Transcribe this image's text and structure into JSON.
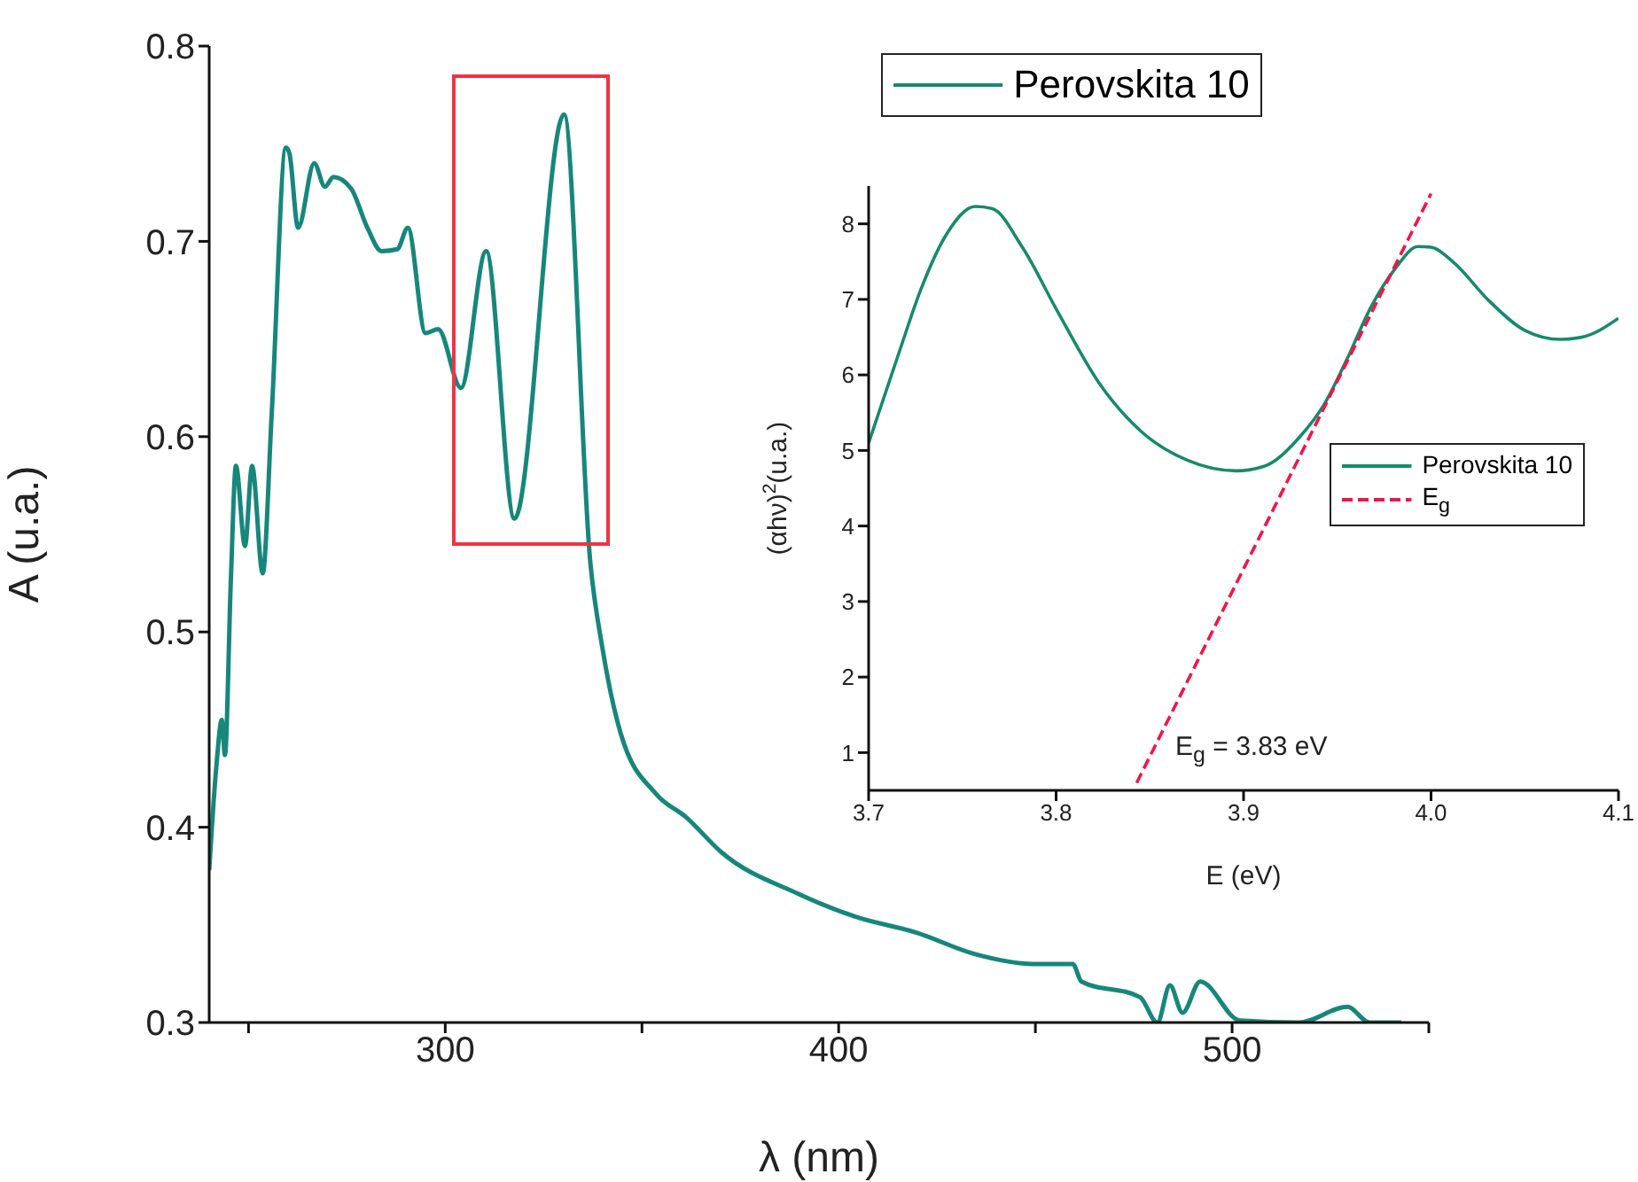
{
  "chart_data": [
    {
      "type": "line",
      "xlabel": "λ (nm)",
      "ylabel": "A (u.a.)",
      "xlim": [
        240,
        550
      ],
      "ylim": [
        0.3,
        0.8
      ],
      "xticks": [
        {
          "value": 250,
          "label": null
        },
        300,
        {
          "value": 350,
          "label": null
        },
        400,
        {
          "value": 450,
          "label": null
        },
        500,
        {
          "value": 550,
          "label": null
        }
      ],
      "yticks": [
        0.3,
        0.4,
        0.5,
        0.6,
        0.7,
        0.8
      ],
      "legend": "top right",
      "marker": "none",
      "series": [
        {
          "name": "Perovskita 10",
          "color": "#16877a",
          "line_style": "solid",
          "x": [
            240,
            241.9,
            243.2,
            244,
            245.5,
            246.8,
            249.1,
            250.9,
            253.6,
            255.9,
            259.5,
            260.4,
            262.6,
            266.7,
            269.4,
            271.6,
            276.1,
            280.2,
            283.8,
            287.8,
            290.5,
            295,
            298.2,
            304,
            310.4,
            317.6,
            330.2,
            336.9,
            340.1,
            344.6,
            353.6,
            361.3,
            370.3,
            389.6,
            404.5,
            419.8,
            434.7,
            449.5,
            459.5,
            461.7,
            476.6,
            481,
            484.2,
            487.4,
            491.9,
            502,
            517,
            529.3,
            535,
            543
          ],
          "values": [
            0.378,
            0.433,
            0.455,
            0.437,
            0.526,
            0.585,
            0.544,
            0.585,
            0.53,
            0.612,
            0.748,
            0.745,
            0.707,
            0.74,
            0.728,
            0.733,
            0.727,
            0.707,
            0.695,
            0.696,
            0.707,
            0.653,
            0.655,
            0.625,
            0.695,
            0.558,
            0.765,
            0.535,
            0.49,
            0.448,
            0.417,
            0.405,
            0.387,
            0.366,
            0.354,
            0.346,
            0.335,
            0.33,
            0.33,
            0.321,
            0.313,
            0.3,
            0.319,
            0.305,
            0.321,
            0.301,
            0.3,
            0.308,
            0.3,
            0.3
          ]
        }
      ]
    },
    {
      "type": "line",
      "xlabel": "E (eV)",
      "ylabel": "(αhν)$^{2}$(u.a.)",
      "xlim": [
        3.7,
        4.1
      ],
      "ylim": [
        0.5,
        8.5
      ],
      "xticks": [
        3.7,
        3.8,
        3.9,
        {
          "value": 4,
          "label": "4.0"
        },
        4.1
      ],
      "yticks": [
        1,
        2,
        3,
        4,
        5,
        6,
        7,
        8
      ],
      "legend": "right",
      "marker": "none",
      "annotations": [
        "E$_{g}$ = 3.83 eV"
      ],
      "series": [
        {
          "name": "Perovskita 10",
          "color": "#178a6c",
          "line_style": "solid",
          "x": [
            3.7,
            3.716,
            3.728,
            3.741,
            3.757,
            3.766,
            3.782,
            3.801,
            3.823,
            3.845,
            3.87,
            3.896,
            3.911,
            3.93,
            3.943,
            3.955,
            3.968,
            3.981,
            3.993,
            4.0,
            4.012,
            4.031,
            4.05,
            4.069,
            4.082,
            4.1
          ],
          "values": [
            5.1,
            6.28,
            7.14,
            7.84,
            8.23,
            8.2,
            7.69,
            6.83,
            5.89,
            5.26,
            4.87,
            4.73,
            4.79,
            5.18,
            5.61,
            6.2,
            6.9,
            7.41,
            7.7,
            7.69,
            7.49,
            6.98,
            6.59,
            6.47,
            6.51,
            6.75
          ]
        },
        {
          "name": "E$_{g}$",
          "color": "#f0154a",
          "line_style": "dashed",
          "x": [
            3.843,
            4.0
          ],
          "values": [
            0.6,
            8.4
          ]
        }
      ]
    }
  ]
}
